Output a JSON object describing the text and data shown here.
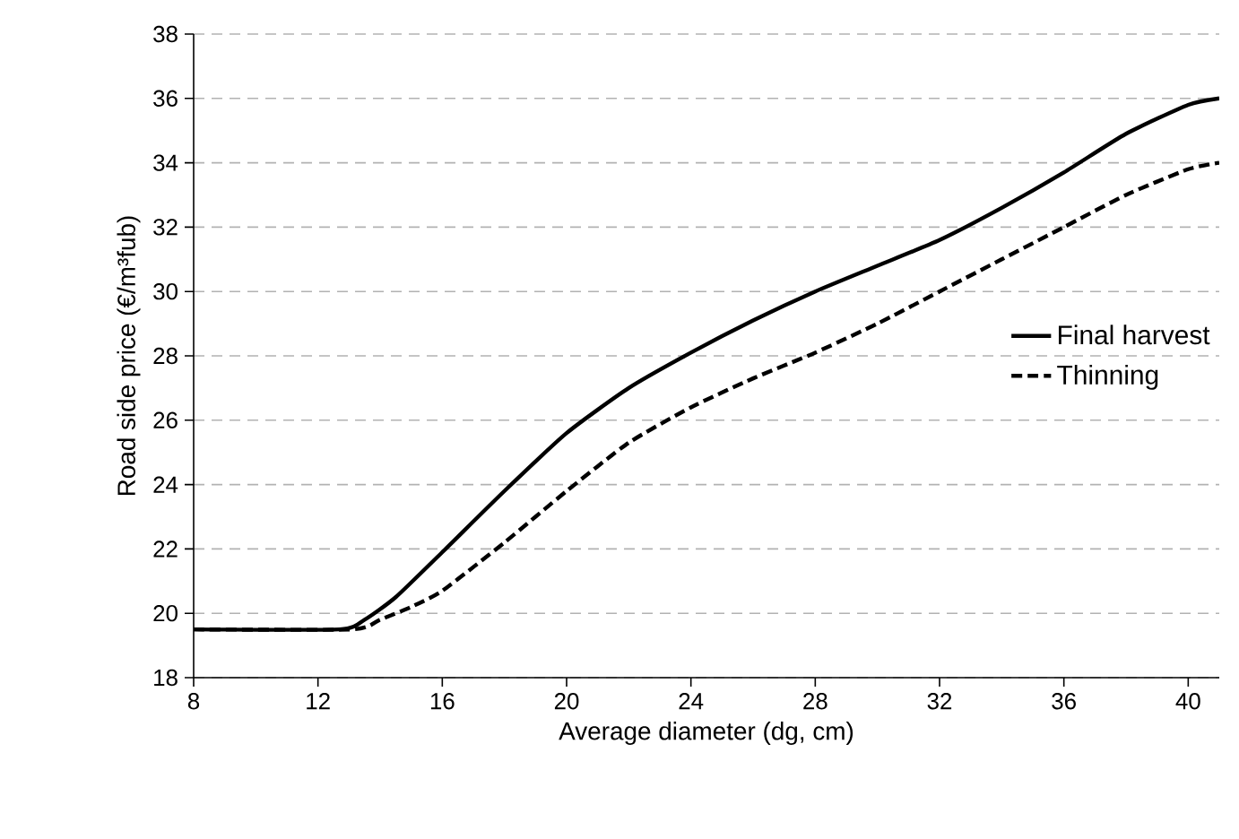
{
  "chart_data": {
    "type": "line",
    "xlabel": "Average diameter (dg, cm)",
    "ylabel": "Road side price (€/m³fub)",
    "xlim": [
      8,
      41
    ],
    "xticks": [
      8,
      12,
      16,
      20,
      24,
      28,
      32,
      36,
      40
    ],
    "ylim": [
      18,
      38
    ],
    "yticks": [
      18,
      20,
      22,
      24,
      26,
      28,
      30,
      32,
      34,
      36,
      38
    ],
    "grid": "y",
    "legend": "right",
    "marker": "none",
    "series": [
      {
        "name": "Final harvest",
        "color": "#000000",
        "line_style": "solid",
        "x": [
          8,
          12.7,
          13.5,
          14.5,
          16,
          18,
          20,
          22,
          24,
          26,
          28,
          30,
          32,
          34,
          36,
          38,
          40,
          41
        ],
        "values": [
          19.5,
          19.5,
          19.8,
          20.5,
          21.9,
          23.8,
          25.6,
          27.0,
          28.1,
          29.1,
          30.0,
          30.8,
          31.6,
          32.6,
          33.7,
          34.9,
          35.8,
          36
        ]
      },
      {
        "name": "Thinning",
        "color": "#000000",
        "line_style": "dashed",
        "x": [
          8,
          13.1,
          14,
          15,
          16,
          18,
          20,
          22,
          24,
          26,
          28,
          30,
          32,
          34,
          36,
          38,
          40,
          41
        ],
        "values": [
          19.5,
          19.5,
          19.8,
          20.2,
          20.7,
          22.2,
          23.8,
          25.3,
          26.4,
          27.3,
          28.1,
          29.0,
          30.0,
          31.0,
          32.0,
          33.0,
          33.8,
          34
        ]
      }
    ]
  }
}
